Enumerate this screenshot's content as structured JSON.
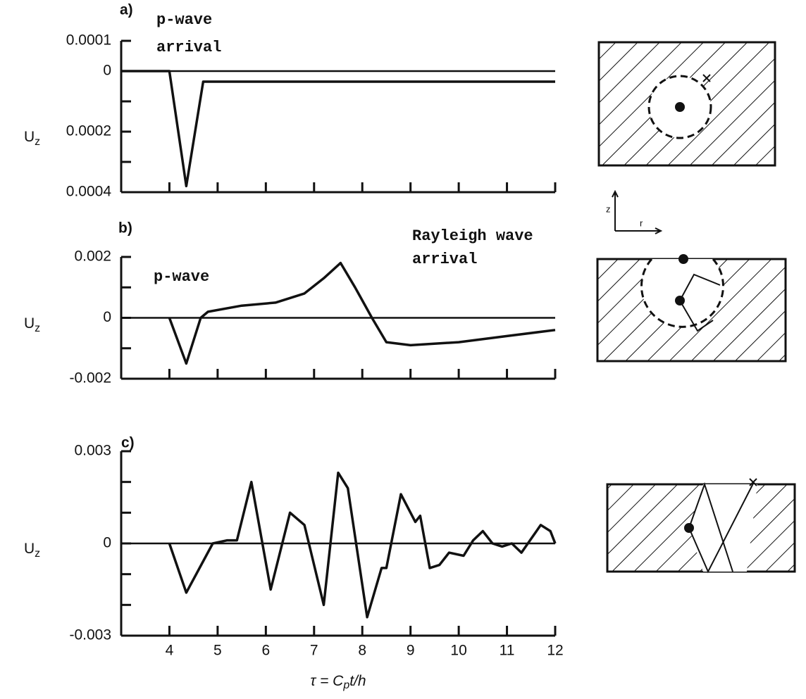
{
  "chart_data": [
    {
      "type": "line",
      "panel_label": "a)",
      "annotations": [
        "p-wave",
        "arrival"
      ],
      "ylabel": {
        "main": "U",
        "sub": "z"
      },
      "xlim": [
        3,
        12
      ],
      "xticks": [
        4,
        5,
        6,
        7,
        8,
        9,
        10,
        11,
        12
      ],
      "xtick_labels": false,
      "ylim": [
        -0.0004,
        0.0001
      ],
      "yticks": [
        0.0001,
        0,
        {
          "value": -0.0002,
          "label": "0.0002"
        },
        {
          "value": -0.0004,
          "label": "0.0004"
        }
      ],
      "yminor": [
        -0.0001,
        -0.0003
      ],
      "zero_line": true,
      "color": "#111",
      "series": [
        {
          "x": [
            3,
            4.0,
            4.35,
            4.7,
            12
          ],
          "values": [
            0,
            0,
            -0.00038,
            -3.5e-05,
            -3.5e-05
          ]
        }
      ]
    },
    {
      "type": "line",
      "panel_label": "b)",
      "annotations": [
        "p-wave",
        "Rayleigh wave",
        "arrival"
      ],
      "ylabel": {
        "main": "U",
        "sub": "z"
      },
      "xlim": [
        3,
        12
      ],
      "xticks": [
        4,
        5,
        6,
        7,
        8,
        9,
        10,
        11,
        12
      ],
      "xtick_labels": false,
      "ylim": [
        -0.002,
        0.002
      ],
      "yticks": [
        0.002,
        0,
        -0.002
      ],
      "yminor": [
        0.001,
        -0.001
      ],
      "zero_line": true,
      "color": "#111",
      "series": [
        {
          "x": [
            4.0,
            4.35,
            4.65,
            4.8,
            5.5,
            6.2,
            6.8,
            7.2,
            7.55,
            7.85,
            8.2,
            8.5,
            9,
            10,
            11,
            12
          ],
          "values": [
            0,
            -0.0015,
            0,
            0.0002,
            0.0004,
            0.0005,
            0.0008,
            0.0013,
            0.0018,
            0.001,
            0,
            -0.0008,
            -0.0009,
            -0.0008,
            -0.0006,
            -0.0004
          ]
        }
      ]
    },
    {
      "type": "line",
      "panel_label": "c)",
      "annotations": [],
      "ylabel": {
        "main": "U",
        "sub": "z"
      },
      "xlabel": [
        "τ = C",
        "p",
        "t/h"
      ],
      "xlim": [
        3,
        12
      ],
      "xticks": [
        4,
        5,
        6,
        7,
        8,
        9,
        10,
        11,
        12
      ],
      "xtick_labels": true,
      "ylim": [
        -0.003,
        0.003
      ],
      "yticks": [
        0.003,
        0,
        -0.003
      ],
      "yminor": [
        0.002,
        0.001,
        -0.001,
        -0.002
      ],
      "zero_line": true,
      "color": "#111",
      "series": [
        {
          "x": [
            4.0,
            4.35,
            4.9,
            5.2,
            5.4,
            5.7,
            6.1,
            6.5,
            6.8,
            7.2,
            7.5,
            7.7,
            8.1,
            8.4,
            8.5,
            8.8,
            9.1,
            9.2,
            9.4,
            9.6,
            9.8,
            10.1,
            10.3,
            10.5,
            10.7,
            10.9,
            11.1,
            11.3,
            11.7,
            11.9,
            12
          ],
          "values": [
            0,
            -0.0016,
            0,
            0.0001,
            0.0001,
            0.002,
            -0.0015,
            0.001,
            0.0006,
            -0.002,
            0.0023,
            0.0018,
            -0.0024,
            -0.0008,
            -0.0008,
            0.0016,
            0.0007,
            0.0009,
            -0.0008,
            -0.0007,
            -0.0003,
            -0.0004,
            0.0001,
            0.0004,
            0,
            -0.0001,
            0,
            -0.0003,
            0.0006,
            0.0004,
            0
          ]
        }
      ]
    }
  ],
  "axes_icon": {
    "z": "z",
    "r": "r"
  }
}
